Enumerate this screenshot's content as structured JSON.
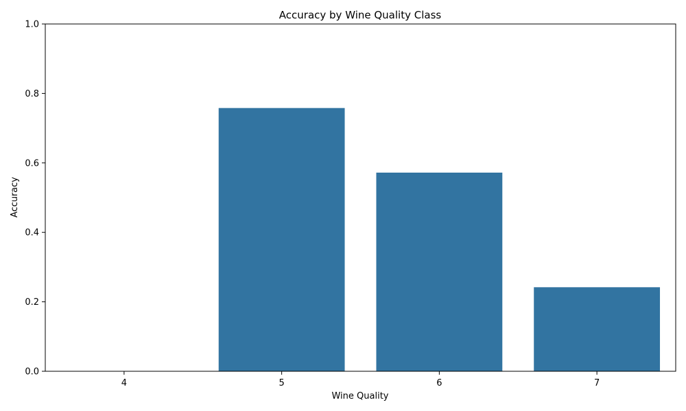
{
  "chart_data": {
    "type": "bar",
    "title": "Accuracy by Wine Quality Class",
    "xlabel": "Wine Quality",
    "ylabel": "Accuracy",
    "categories": [
      "4",
      "5",
      "6",
      "7"
    ],
    "values": [
      0.0,
      0.758,
      0.572,
      0.242
    ],
    "ylim": [
      0,
      1
    ],
    "yticks": [
      "0.0",
      "0.2",
      "0.4",
      "0.6",
      "0.8",
      "1.0"
    ],
    "grid": false,
    "bar_color": "#3274a1"
  }
}
